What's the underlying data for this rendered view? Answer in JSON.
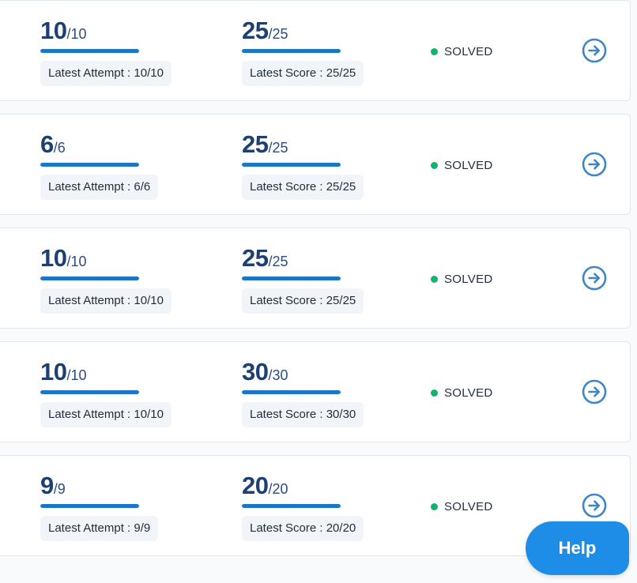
{
  "rows": [
    {
      "attempt": {
        "value": "10",
        "total": "/10",
        "progress": 1.0,
        "latest_label": "Latest Attempt : 10/10"
      },
      "score": {
        "value": "25",
        "total": "/25",
        "progress": 1.0,
        "latest_label": "Latest Score : 25/25"
      },
      "status": "SOLVED"
    },
    {
      "attempt": {
        "value": "6",
        "total": "/6",
        "progress": 1.0,
        "latest_label": "Latest Attempt : 6/6"
      },
      "score": {
        "value": "25",
        "total": "/25",
        "progress": 1.0,
        "latest_label": "Latest Score : 25/25"
      },
      "status": "SOLVED"
    },
    {
      "attempt": {
        "value": "10",
        "total": "/10",
        "progress": 1.0,
        "latest_label": "Latest Attempt : 10/10"
      },
      "score": {
        "value": "25",
        "total": "/25",
        "progress": 1.0,
        "latest_label": "Latest Score : 25/25"
      },
      "status": "SOLVED"
    },
    {
      "attempt": {
        "value": "10",
        "total": "/10",
        "progress": 1.0,
        "latest_label": "Latest Attempt : 10/10"
      },
      "score": {
        "value": "30",
        "total": "/30",
        "progress": 1.0,
        "latest_label": "Latest Score : 30/30"
      },
      "status": "SOLVED"
    },
    {
      "attempt": {
        "value": "9",
        "total": "/9",
        "progress": 1.0,
        "latest_label": "Latest Attempt : 9/9"
      },
      "score": {
        "value": "20",
        "total": "/20",
        "progress": 1.0,
        "latest_label": "Latest Score : 20/20"
      },
      "status": "SOLVED"
    }
  ],
  "colors": {
    "accent": "#1b75c9",
    "status_solved": "#14b26e",
    "help_button": "#1e8de8"
  },
  "icons": {
    "open": "arrow-right-circle-icon"
  },
  "help_label": "Help"
}
